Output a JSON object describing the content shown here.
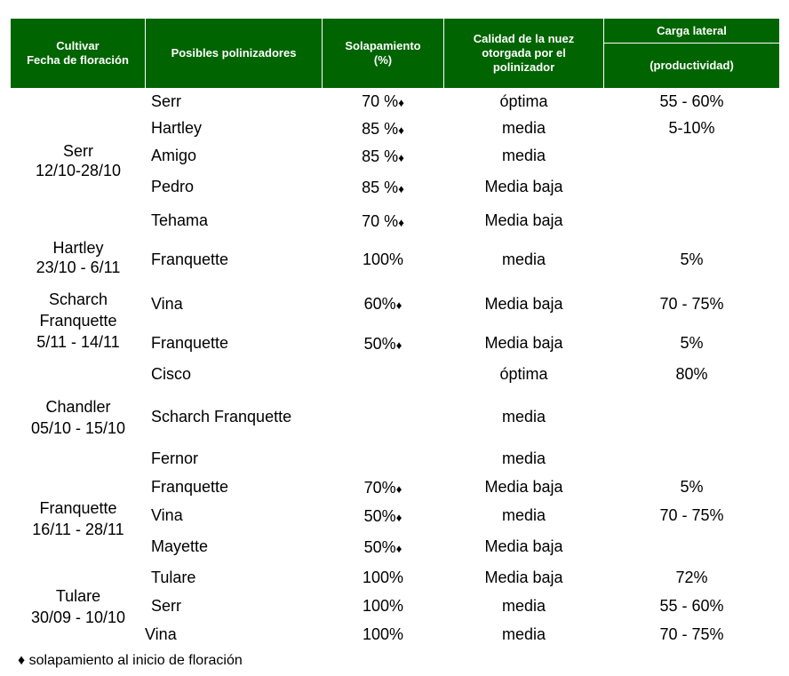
{
  "header": {
    "col1_line1": "Cultivar",
    "col1_line2": "Fecha de floración",
    "col2": "Posibles polinizadores",
    "col3_line1": "Solapamiento",
    "col3_line2": "(%)",
    "col4_line1": "Calidad de la nuez",
    "col4_line2": "otorgada por el",
    "col4_line3": "polinizador",
    "col5_top": "Carga lateral",
    "col5_bottom": "(productividad)"
  },
  "symbols": {
    "diamond": "♦"
  },
  "groups": [
    {
      "cultivar": "Serr",
      "dates": "12/10-28/10"
    },
    {
      "cultivar": "Hartley",
      "dates": "23/10 - 6/11"
    },
    {
      "cultivar_line1": "Scharch",
      "cultivar_line2": "Franquette",
      "dates": "5/11 - 14/11"
    },
    {
      "cultivar": "Chandler",
      "dates": "05/10 - 15/10"
    },
    {
      "cultivar": "Franquette",
      "dates": "16/11 - 28/11"
    },
    {
      "cultivar": "Tulare",
      "dates": "30/09 - 10/10"
    }
  ],
  "rows": [
    {
      "pollinator": "Serr",
      "overlap": "70 %",
      "quality": "óptima",
      "load": "55 - 60%"
    },
    {
      "pollinator": "Hartley",
      "overlap": "85 %",
      "quality": "media",
      "load": "5-10%"
    },
    {
      "pollinator": "Amigo",
      "overlap": "85 %",
      "quality": "media",
      "load": ""
    },
    {
      "pollinator": "Pedro",
      "overlap": "85 %",
      "quality": "Media baja",
      "load": ""
    },
    {
      "pollinator": "Tehama",
      "overlap": "70 %",
      "quality": "Media baja",
      "load": ""
    },
    {
      "pollinator": "Franquette",
      "overlap": "100%",
      "quality": "media",
      "load": "5%"
    },
    {
      "pollinator": "Vina",
      "overlap": "60%",
      "quality": "Media baja",
      "load": "70 - 75%"
    },
    {
      "pollinator": "Franquette",
      "overlap": "50%",
      "quality": "Media baja",
      "load": "5%"
    },
    {
      "pollinator": "Cisco",
      "overlap": "",
      "quality": "óptima",
      "load": "80%"
    },
    {
      "pollinator": "Scharch Franquette",
      "overlap": "",
      "quality": "media",
      "load": ""
    },
    {
      "pollinator": "Fernor",
      "overlap": "",
      "quality": "media",
      "load": ""
    },
    {
      "pollinator": "Franquette",
      "overlap": "70%",
      "quality": "Media baja",
      "load": "5%"
    },
    {
      "pollinator": "Vina",
      "overlap": "50%",
      "quality": "media",
      "load": "70 - 75%"
    },
    {
      "pollinator": "Mayette",
      "overlap": "50%",
      "quality": "Media baja",
      "load": ""
    },
    {
      "pollinator": "Tulare",
      "overlap": "100%",
      "quality": "Media baja",
      "load": "72%"
    },
    {
      "pollinator": "Serr",
      "overlap": "100%",
      "quality": "media",
      "load": "55 - 60%"
    },
    {
      "pollinator": "Vina",
      "overlap": "100%",
      "quality": "media",
      "load": "70 - 75%"
    }
  ],
  "footnote": "solapamiento al inicio de floración"
}
